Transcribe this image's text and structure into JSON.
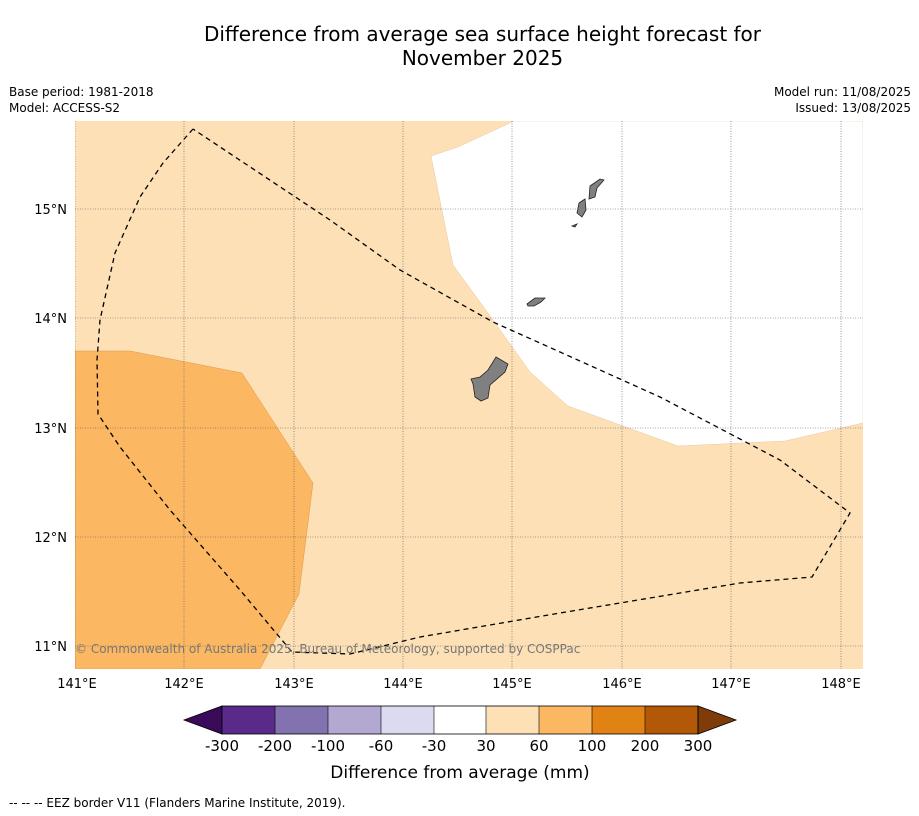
{
  "title_line1": "Difference from average sea surface height forecast for",
  "title_line2": "November 2025",
  "meta": {
    "base_period": "Base period: 1981-2018",
    "model": "Model: ACCESS-S2",
    "model_run": "Model run: 11/08/2025",
    "issued": "Issued: 13/08/2025"
  },
  "map": {
    "lon_labels": [
      "141°E",
      "142°E",
      "143°E",
      "144°E",
      "145°E",
      "146°E",
      "147°E",
      "148°E"
    ],
    "lat_labels": [
      "15°N",
      "14°N",
      "13°N",
      "12°N",
      "11°N"
    ],
    "copyright": "© Commonwealth of Australia 2025, Bureau of Meteorology, supported by COSPPac",
    "colors": {
      "band_30_60": "#fde0b6",
      "band_60_100": "#fbb762",
      "band_neutral": "#ffffff",
      "land": "#808080",
      "grid": "#555555"
    }
  },
  "colorbar": {
    "labels": [
      "-300",
      "-200",
      "-100",
      "-60",
      "-30",
      "30",
      "60",
      "100",
      "200",
      "300"
    ],
    "colors": [
      "#3b0a5a",
      "#5a2a8a",
      "#8272b0",
      "#b2a8d2",
      "#dcdaee",
      "#ffffff",
      "#fde0b6",
      "#fbb762",
      "#e08214",
      "#b35806",
      "#7f3b08"
    ],
    "title": "Difference from average (mm)"
  },
  "footnote": "--  --  -- EEZ border V11 (Flanders Marine Institute, 2019)."
}
